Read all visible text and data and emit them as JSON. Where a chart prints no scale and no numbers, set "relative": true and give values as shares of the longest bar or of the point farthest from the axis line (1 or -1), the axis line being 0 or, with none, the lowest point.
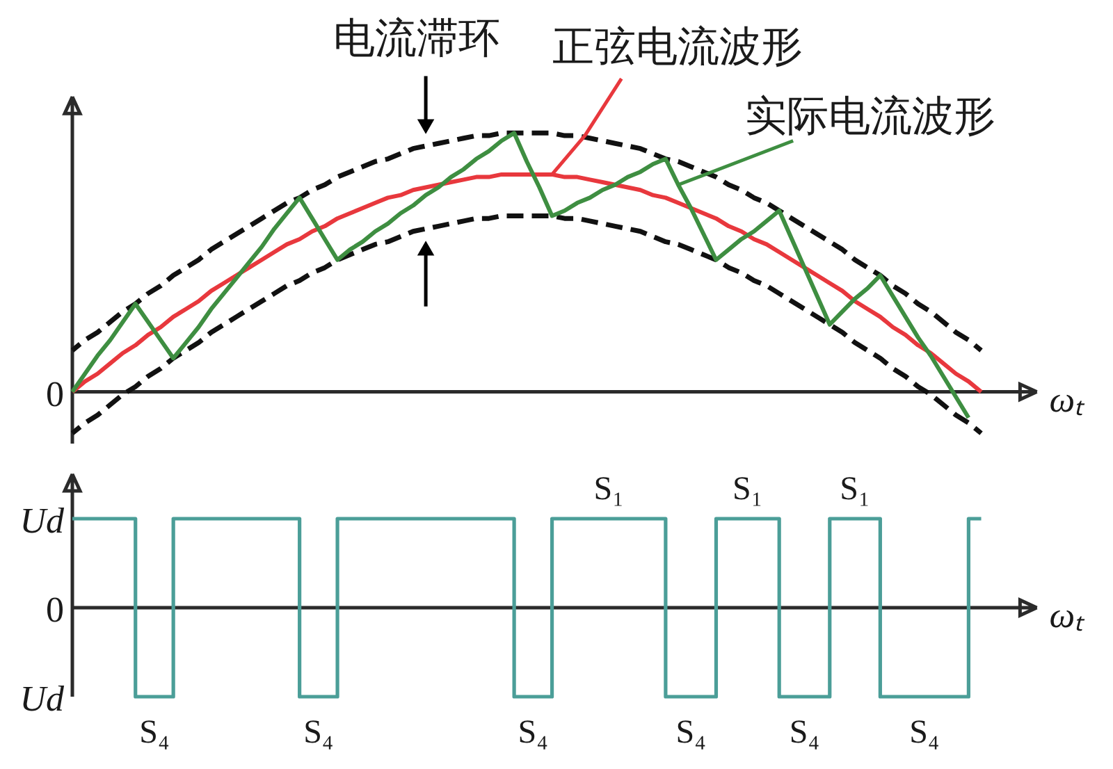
{
  "chart_data": [
    {
      "type": "line",
      "relative": true,
      "xlabel": "ωₜ",
      "annotations": [
        "电流滞环",
        "0"
      ],
      "categories": [
        null,
        null,
        null,
        null,
        null,
        null,
        null,
        null,
        null,
        null,
        null,
        null,
        null,
        null,
        null,
        null,
        null,
        null,
        null,
        null,
        null,
        null,
        null,
        null,
        null,
        null,
        null,
        null,
        null,
        null,
        null,
        null,
        null,
        null,
        null,
        null,
        null,
        null,
        null,
        null,
        null,
        null,
        null,
        null,
        null,
        null,
        null,
        null,
        null,
        null,
        null,
        null,
        null,
        null,
        null,
        null,
        null,
        null,
        null,
        null,
        null,
        null,
        null,
        null,
        null,
        null,
        null,
        null,
        null,
        null,
        null,
        null,
        null
      ],
      "series": [
        {
          "color": "#111111",
          "line_style": "dashed",
          "values": [
            0.16,
            0.2,
            0.23,
            0.27,
            0.31,
            0.34,
            0.38,
            0.41,
            0.45,
            0.48,
            0.51,
            0.55,
            0.58,
            0.61,
            0.64,
            0.67,
            0.7,
            0.73,
            0.75,
            0.78,
            0.8,
            0.83,
            0.85,
            0.87,
            0.89,
            0.9,
            0.92,
            0.94,
            0.95,
            0.96,
            0.97,
            0.98,
            0.99,
            0.99,
            1,
            1,
            1,
            1,
            1,
            0.99,
            0.99,
            0.98,
            0.97,
            0.96,
            0.95,
            0.94,
            0.92,
            0.9,
            0.89,
            0.87,
            0.85,
            0.83,
            0.8,
            0.78,
            0.75,
            0.73,
            0.7,
            0.67,
            0.64,
            0.61,
            0.58,
            0.55,
            0.51,
            0.48,
            0.45,
            0.41,
            0.38,
            0.34,
            0.31,
            0.27,
            0.23,
            0.2,
            0.16
          ]
        },
        {
          "color": "#111111",
          "line_style": "dashed",
          "values": [
            -0.16,
            -0.12,
            -0.09,
            -0.05,
            -0.01,
            0.02,
            0.06,
            0.09,
            0.13,
            0.16,
            0.19,
            0.23,
            0.26,
            0.29,
            0.32,
            0.35,
            0.38,
            0.41,
            0.43,
            0.46,
            0.48,
            0.51,
            0.53,
            0.55,
            0.57,
            0.58,
            0.6,
            0.62,
            0.63,
            0.64,
            0.65,
            0.66,
            0.67,
            0.67,
            0.68,
            0.68,
            0.68,
            0.68,
            0.68,
            0.67,
            0.67,
            0.66,
            0.65,
            0.64,
            0.63,
            0.62,
            0.6,
            0.58,
            0.57,
            0.55,
            0.53,
            0.51,
            0.48,
            0.46,
            0.43,
            0.41,
            0.38,
            0.35,
            0.32,
            0.29,
            0.26,
            0.23,
            0.19,
            0.16,
            0.13,
            0.09,
            0.06,
            0.02,
            -0.01,
            -0.05,
            -0.09,
            -0.12,
            -0.16
          ]
        },
        {
          "name": "正弦电流波形",
          "color": "#e8383d",
          "values": [
            0,
            0.04,
            0.07,
            0.11,
            0.15,
            0.18,
            0.22,
            0.25,
            0.29,
            0.32,
            0.35,
            0.39,
            0.42,
            0.45,
            0.48,
            0.51,
            0.54,
            0.57,
            0.59,
            0.62,
            0.64,
            0.67,
            0.69,
            0.71,
            0.73,
            0.75,
            0.76,
            0.78,
            0.79,
            0.8,
            0.81,
            0.82,
            0.83,
            0.83,
            0.84,
            0.84,
            0.84,
            0.84,
            0.84,
            0.83,
            0.83,
            0.82,
            0.81,
            0.8,
            0.79,
            0.78,
            0.76,
            0.75,
            0.73,
            0.71,
            0.69,
            0.67,
            0.64,
            0.62,
            0.59,
            0.57,
            0.54,
            0.51,
            0.48,
            0.45,
            0.42,
            0.39,
            0.35,
            0.32,
            0.29,
            0.25,
            0.22,
            0.18,
            0.15,
            0.11,
            0.07,
            0.04,
            0
          ]
        },
        {
          "name": "实际电流波形",
          "color": "#3e8e41",
          "values": [
            0,
            0.07,
            0.14,
            0.2,
            0.27,
            0.34,
            0.27,
            0.2,
            0.13,
            0.19,
            0.25,
            0.32,
            0.38,
            0.44,
            0.5,
            0.56,
            0.63,
            0.69,
            0.75,
            0.67,
            0.59,
            0.51,
            0.55,
            0.58,
            0.62,
            0.65,
            0.69,
            0.72,
            0.76,
            0.79,
            0.83,
            0.86,
            0.9,
            0.93,
            0.97,
            1,
            0.89,
            0.79,
            0.68,
            0.7,
            0.73,
            0.75,
            0.78,
            0.8,
            0.83,
            0.85,
            0.88,
            0.9,
            0.8,
            0.71,
            0.61,
            0.51,
            0.55,
            0.59,
            0.62,
            0.66,
            0.7,
            0.59,
            0.48,
            0.37,
            0.26,
            0.31,
            0.36,
            0.4,
            0.45,
            0.37,
            0.29,
            0.21,
            0.14,
            0.06,
            -0.02,
            -0.1,
            null
          ]
        }
      ]
    },
    {
      "type": "step",
      "relative": true,
      "xlabel": "ωₜ",
      "annotations": [
        "Ud",
        "0",
        "Ud",
        "S₁",
        "S₁",
        "S₁",
        "S₄",
        "S₄",
        "S₄",
        "S₄",
        "S₄",
        "S₄"
      ],
      "categories": [
        null,
        null,
        null,
        null,
        null,
        null,
        null,
        null,
        null,
        null,
        null,
        null,
        null,
        null,
        null,
        null,
        null,
        null,
        null,
        null,
        null,
        null,
        null,
        null,
        null,
        null,
        null,
        null,
        null,
        null,
        null,
        null,
        null,
        null,
        null,
        null,
        null,
        null,
        null,
        null,
        null,
        null,
        null,
        null,
        null,
        null,
        null,
        null,
        null,
        null,
        null,
        null,
        null,
        null,
        null,
        null,
        null,
        null,
        null,
        null,
        null,
        null,
        null,
        null,
        null,
        null,
        null,
        null,
        null,
        null,
        null,
        null,
        null
      ],
      "series": [
        {
          "color": "#4b9e98",
          "values": [
            1,
            1,
            1,
            1,
            1,
            -1,
            -1,
            -1,
            1,
            1,
            1,
            1,
            1,
            1,
            1,
            1,
            1,
            1,
            -1,
            -1,
            -1,
            1,
            1,
            1,
            1,
            1,
            1,
            1,
            1,
            1,
            1,
            1,
            1,
            1,
            1,
            -1,
            -1,
            -1,
            1,
            1,
            1,
            1,
            1,
            1,
            1,
            1,
            1,
            -1,
            -1,
            -1,
            -1,
            1,
            1,
            1,
            1,
            1,
            -1,
            -1,
            -1,
            -1,
            1,
            1,
            1,
            1,
            -1,
            -1,
            -1,
            -1,
            -1,
            -1,
            -1,
            1,
            1
          ]
        }
      ]
    }
  ]
}
